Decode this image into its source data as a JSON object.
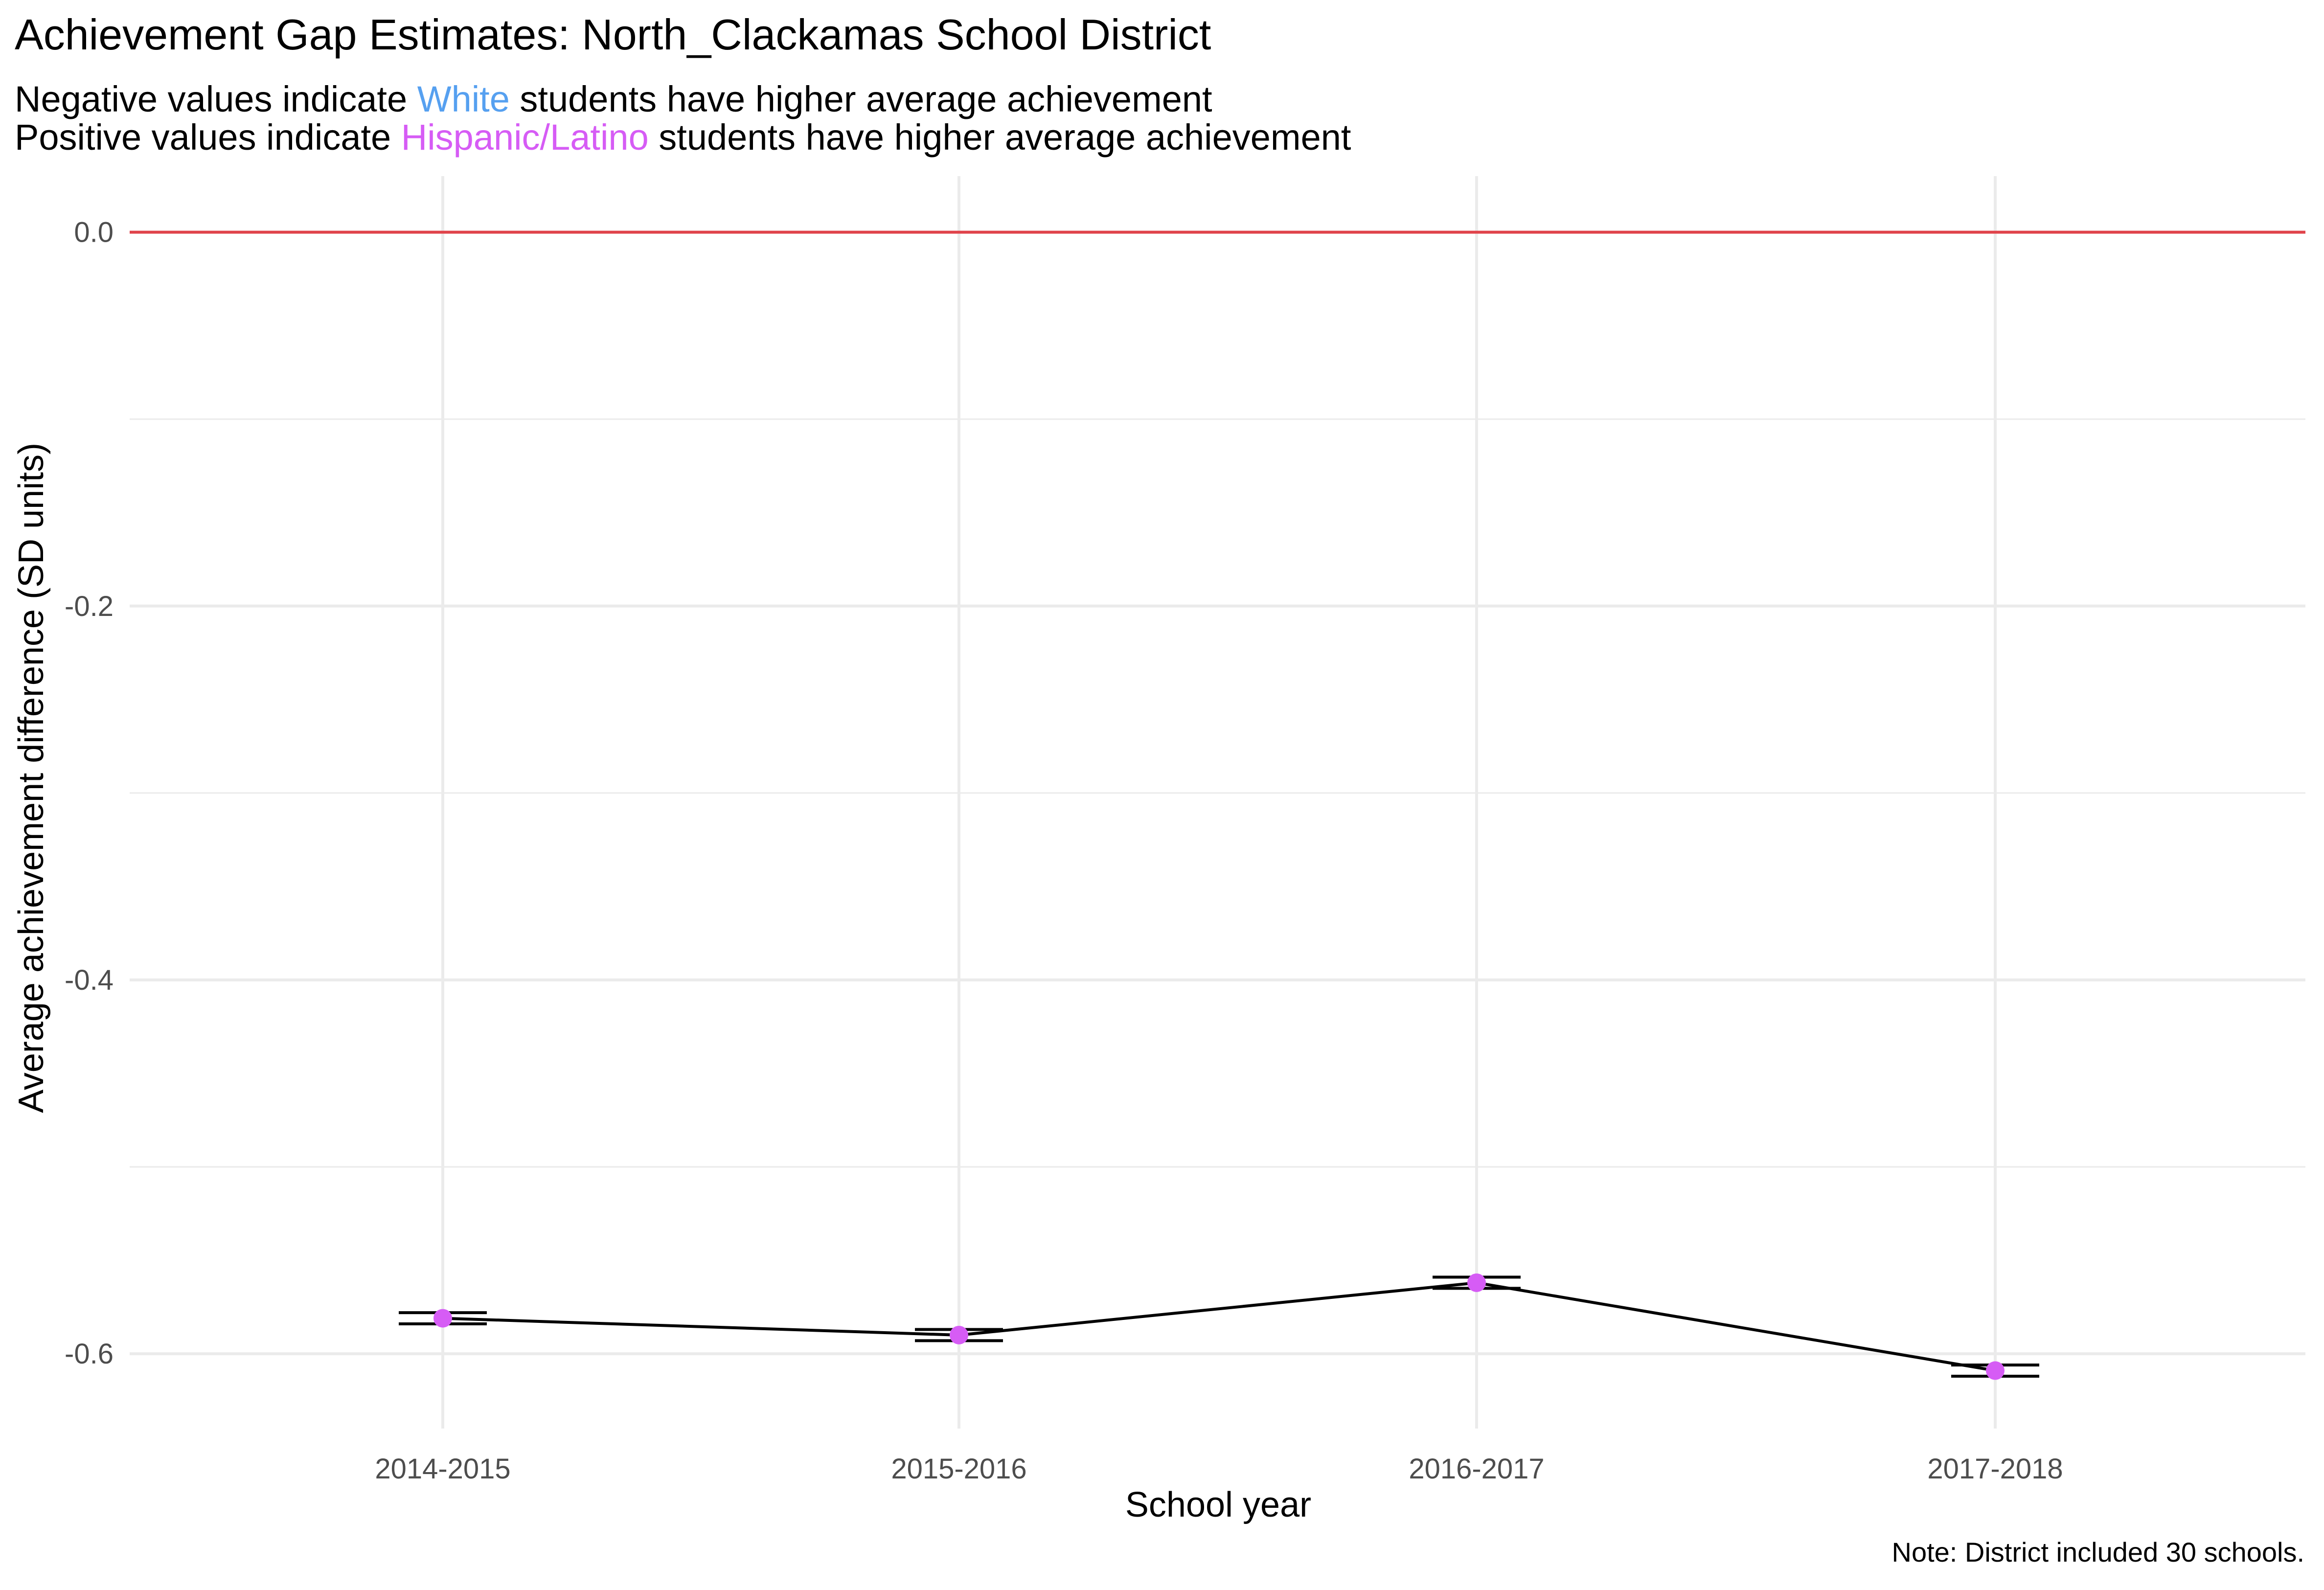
{
  "chart_data": {
    "type": "line",
    "title": "Achievement Gap Estimates: North_Clackamas School District",
    "subtitle": {
      "line1": {
        "before": "Negative values indicate ",
        "highlight": "White",
        "after": " students have higher average achievement"
      },
      "line2": {
        "before": "Positive values indicate ",
        "highlight": "Hispanic/Latino",
        "after": " students have higher average achievement"
      }
    },
    "caption": "Note: District included 30 schools.",
    "xlabel": "School year",
    "ylabel": "Average achievement difference (SD units)",
    "categories": [
      "2014-2015",
      "2015-2016",
      "2016-2017",
      "2017-2018"
    ],
    "series": [
      {
        "values": [
          -0.581,
          -0.59,
          -0.562,
          -0.609
        ],
        "error_low": [
          -0.584,
          -0.593,
          -0.565,
          -0.612
        ],
        "error_high": [
          -0.578,
          -0.587,
          -0.559,
          -0.606
        ]
      }
    ],
    "reference_line": 0,
    "ylim": [
      -0.64,
      0.03
    ],
    "yticks": [
      0.0,
      -0.2,
      -0.4,
      -0.6
    ],
    "ytick_labels": [
      "0.0",
      "-0.2",
      "-0.4",
      "-0.6"
    ],
    "grid": true,
    "colors": {
      "white": "#56A0F0",
      "hispanic": "#D65CF5",
      "reference": "#E0434A",
      "line": "#000000",
      "point": "#D65CF5",
      "grid": "#EBEBEB"
    }
  }
}
